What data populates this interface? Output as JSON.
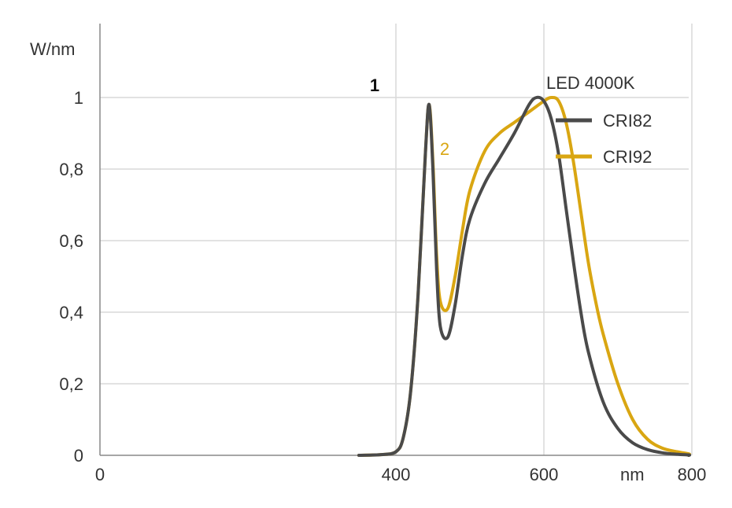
{
  "chart_data": {
    "type": "line",
    "ylabel": "W/nm",
    "xlabel": "nm",
    "xlim": [
      0,
      1000
    ],
    "ylim": [
      0,
      1.1
    ],
    "x_ticks": [
      0,
      400,
      600,
      800
    ],
    "x_tick_labels": [
      "0",
      "400",
      "600",
      "800"
    ],
    "y_ticks": [
      0,
      0.2,
      0.4,
      0.6,
      0.8,
      1
    ],
    "y_tick_labels": [
      "0",
      "0,2",
      "0,4",
      "0,6",
      "0,8",
      "1"
    ],
    "grid": true,
    "legend": {
      "title": "LED 4000K",
      "position": "top-right",
      "entries": [
        "CRI82",
        "CRI92"
      ]
    },
    "series": [
      {
        "name": "CRI82",
        "color": "#4a4a4a",
        "label": "1",
        "x": [
          350,
          380,
          400,
          410,
          420,
          430,
          440,
          445,
          450,
          455,
          460,
          470,
          480,
          490,
          500,
          520,
          540,
          560,
          580,
          590,
          600,
          610,
          620,
          630,
          640,
          650,
          660,
          680,
          700,
          720,
          740,
          760,
          780,
          800,
          850,
          900,
          1000
        ],
        "y": [
          0,
          0.002,
          0.01,
          0.05,
          0.18,
          0.45,
          0.85,
          0.98,
          0.8,
          0.52,
          0.36,
          0.33,
          0.42,
          0.56,
          0.66,
          0.76,
          0.83,
          0.9,
          0.98,
          1.0,
          0.99,
          0.94,
          0.84,
          0.69,
          0.54,
          0.4,
          0.29,
          0.15,
          0.075,
          0.035,
          0.016,
          0.007,
          0.003,
          0.001,
          0,
          0,
          0
        ]
      },
      {
        "name": "CRI92",
        "color": "#d9a612",
        "label": "2",
        "x": [
          350,
          380,
          400,
          410,
          420,
          430,
          440,
          445,
          450,
          455,
          460,
          470,
          480,
          490,
          500,
          520,
          540,
          560,
          580,
          600,
          610,
          620,
          630,
          640,
          650,
          660,
          670,
          680,
          700,
          720,
          740,
          760,
          780,
          800,
          850,
          900,
          1000
        ],
        "y": [
          0,
          0.002,
          0.01,
          0.05,
          0.18,
          0.45,
          0.85,
          0.98,
          0.82,
          0.56,
          0.43,
          0.41,
          0.5,
          0.63,
          0.74,
          0.85,
          0.9,
          0.93,
          0.96,
          0.99,
          1.0,
          0.99,
          0.93,
          0.82,
          0.68,
          0.54,
          0.43,
          0.34,
          0.2,
          0.1,
          0.045,
          0.02,
          0.01,
          0.004,
          0.001,
          0,
          0
        ]
      }
    ]
  }
}
